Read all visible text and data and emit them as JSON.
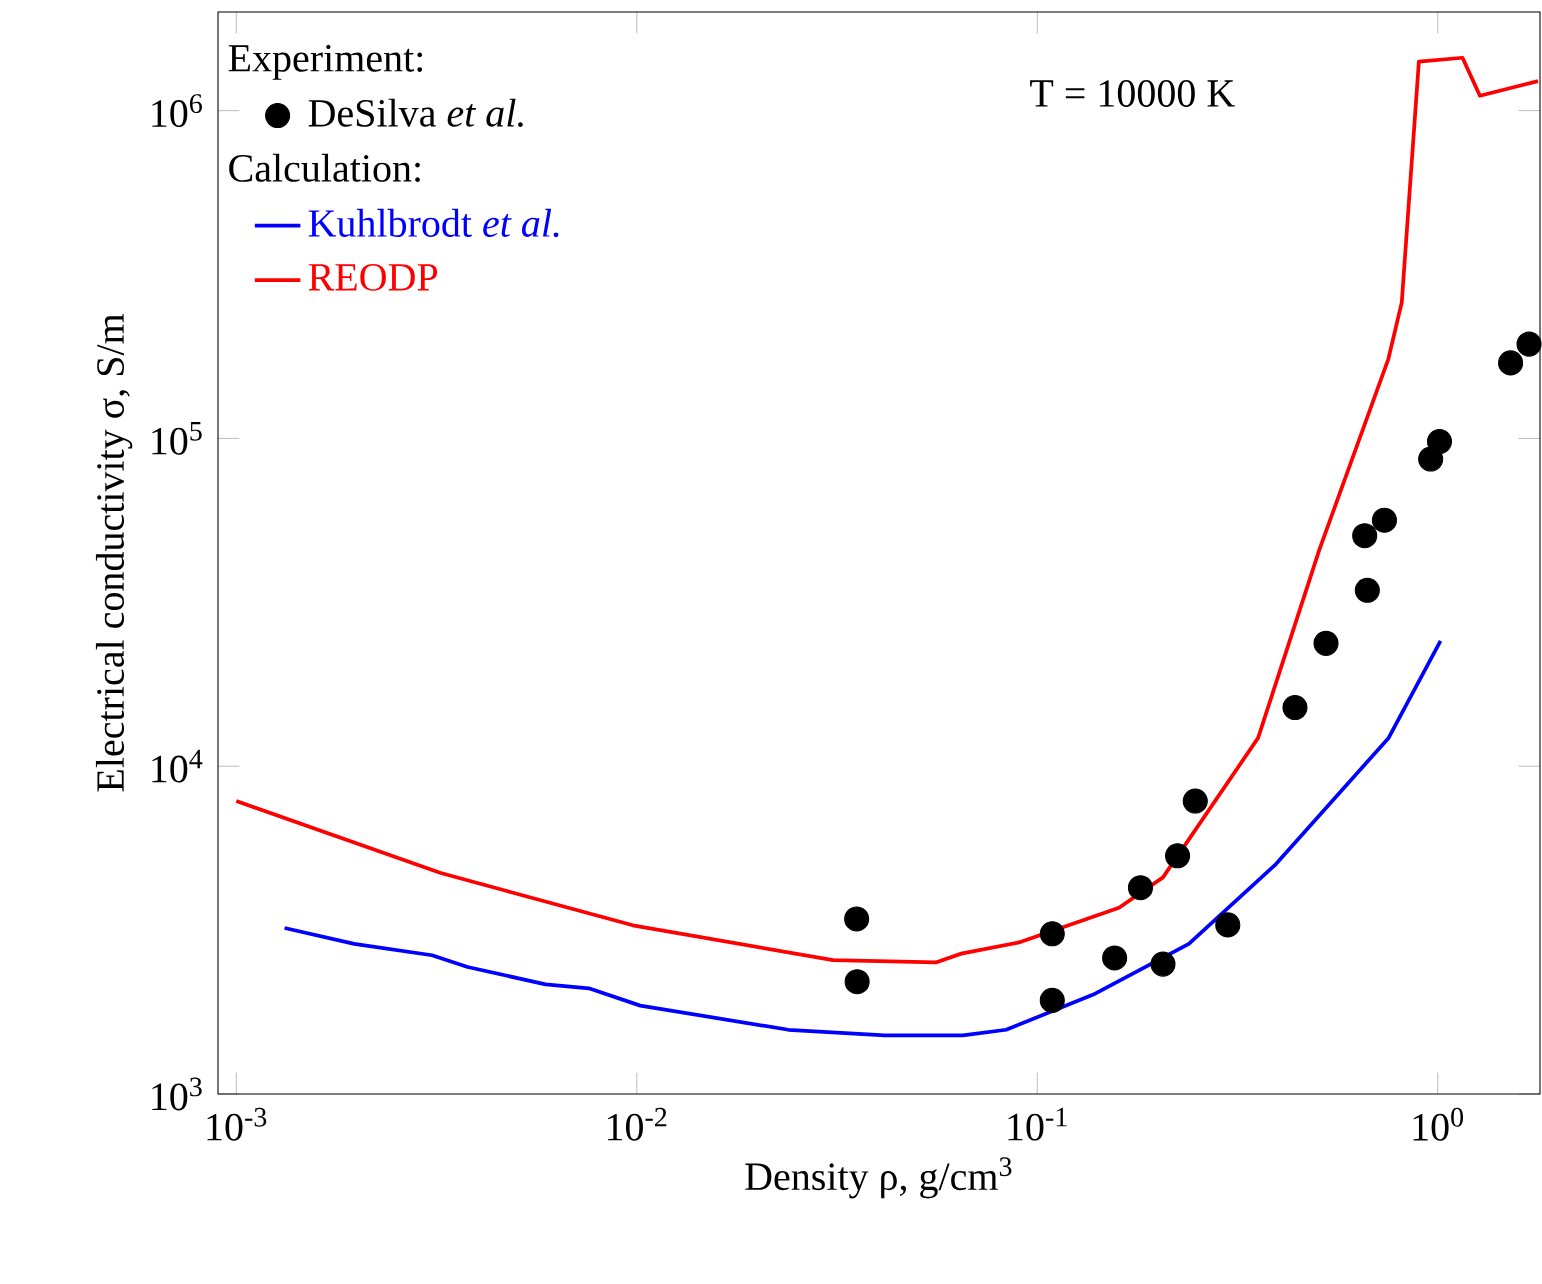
{
  "chart_data": {
    "type": "line",
    "xlabel": "Density ρ, g/cm$^{3}$",
    "ylabel": "Electrical conductivity σ, S/m",
    "log": "xy",
    "xlim": [
      0.0009,
      1.8
    ],
    "ylim": [
      1000,
      2000000
    ],
    "xticks": [
      {
        "value": 0.001,
        "label": "10$^{-3}$"
      },
      {
        "value": 0.01,
        "label": "10$^{-2}$"
      },
      {
        "value": 0.1,
        "label": "10$^{-1}$"
      },
      {
        "value": 1,
        "label": "10$^{0}$"
      }
    ],
    "yticks": [
      {
        "value": 1000,
        "label": "10$^{3}$"
      },
      {
        "value": 10000,
        "label": "10$^{4}$"
      },
      {
        "value": 100000,
        "label": "10$^{5}$"
      },
      {
        "value": 1000000,
        "label": "10$^{6}$"
      }
    ],
    "legend": "top left",
    "annotations": [
      "Experiment:",
      "Calculation:",
      "T = 10000 K"
    ],
    "series": [
      {
        "type": "scatter",
        "name": "DeSilva *et al.*",
        "color": "#000000",
        "x": [
          0.0354,
          0.0355,
          0.109,
          0.109,
          0.156,
          0.181,
          0.206,
          0.224,
          0.248,
          0.299,
          0.44,
          0.526,
          0.657,
          0.667,
          0.736,
          0.96,
          1.01,
          1.52,
          1.69
        ],
        "values": [
          3420,
          2200,
          3080,
          1930,
          2600,
          4260,
          2490,
          5330,
          7830,
          3280,
          15100,
          23700,
          50500,
          34400,
          56300,
          86500,
          97800,
          170000,
          194000
        ]
      },
      {
        "type": "line",
        "name": "Kuhlbrodt *et al.*",
        "color": "#0000ff",
        "x": [
          0.00132,
          0.00197,
          0.00308,
          0.00378,
          0.00592,
          0.00759,
          0.0102,
          0.0239,
          0.0416,
          0.0652,
          0.0836,
          0.138,
          0.239,
          0.394,
          0.754,
          1.016
        ],
        "values": [
          3210,
          2870,
          2650,
          2440,
          2160,
          2100,
          1860,
          1570,
          1510,
          1510,
          1570,
          2010,
          2870,
          5020,
          12200,
          24100
        ]
      },
      {
        "type": "line",
        "name": "REODP",
        "color": "#ff0000",
        "x": [
          0.001,
          0.00324,
          0.00977,
          0.0309,
          0.0558,
          0.0646,
          0.09,
          0.16,
          0.206,
          0.356,
          0.506,
          0.753,
          0.813,
          0.897,
          1.153,
          1.274,
          1.78
        ],
        "values": [
          7830,
          4720,
          3270,
          2560,
          2520,
          2680,
          2900,
          3700,
          4580,
          12200,
          45700,
          175000,
          260000,
          1410000,
          1450000,
          1110000,
          1230000
        ]
      }
    ]
  }
}
